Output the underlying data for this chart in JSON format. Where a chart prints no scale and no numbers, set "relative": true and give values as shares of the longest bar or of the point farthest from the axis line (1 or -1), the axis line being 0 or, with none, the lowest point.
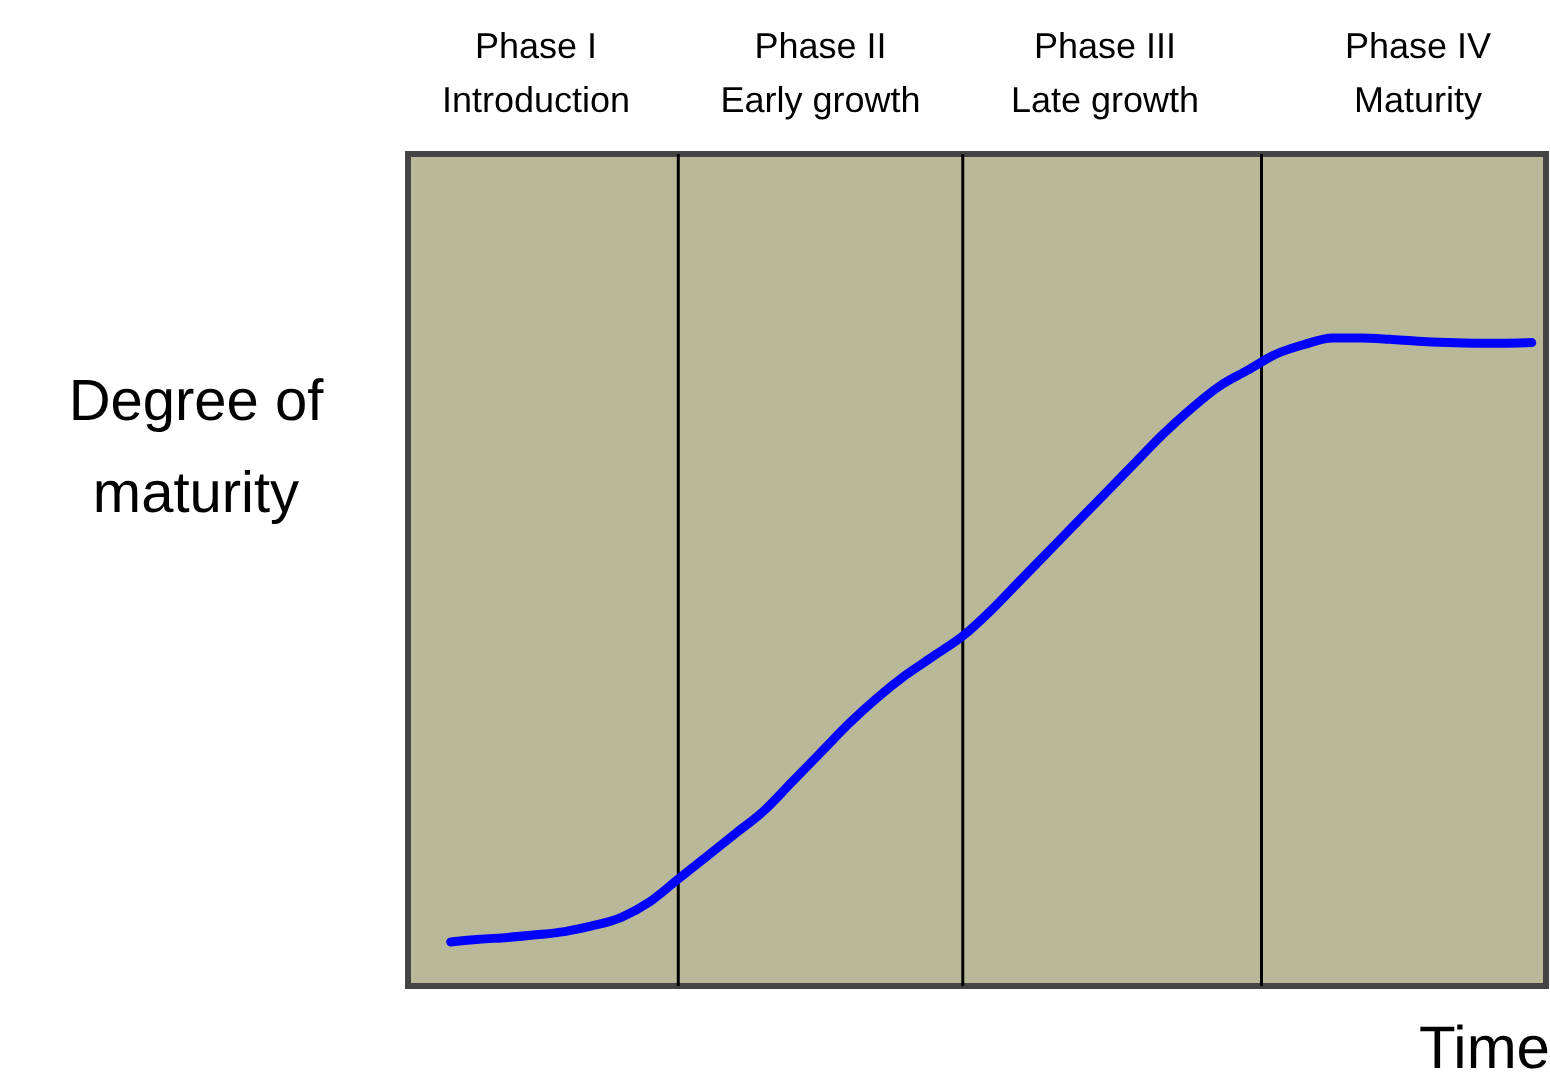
{
  "chart_data": {
    "type": "line",
    "xlabel": "Time",
    "ylabel": "Degree of maturity",
    "relative": true,
    "marker": "none",
    "categories": [
      null,
      null,
      null,
      null,
      "Phase I\nIntroduction",
      null,
      null,
      null,
      null,
      null,
      null,
      null,
      null,
      null,
      "Phase II\nEarly growth",
      null,
      null,
      null,
      null,
      null,
      null,
      null,
      null,
      null,
      "Phase III\nLate growth",
      null,
      null,
      null,
      null,
      null,
      null,
      null,
      null,
      null,
      null,
      "Phase IV\nMaturity",
      null,
      null,
      null,
      null
    ],
    "series": [
      {
        "color": "#0000ff",
        "values": [
          null,
          0.068,
          0.072,
          0.075,
          0.079,
          0.084,
          0.093,
          0.106,
          0.13,
          0.165,
          0.2,
          0.235,
          0.27,
          0.315,
          0.36,
          0.405,
          0.445,
          0.48,
          0.51,
          0.54,
          0.58,
          0.625,
          0.67,
          0.715,
          0.76,
          0.805,
          0.85,
          0.89,
          0.925,
          0.95,
          0.975,
          0.99,
          1.0,
          1.0,
          0.998,
          0.995,
          0.993,
          0.992,
          0.992,
          0.993
        ]
      }
    ]
  }
}
